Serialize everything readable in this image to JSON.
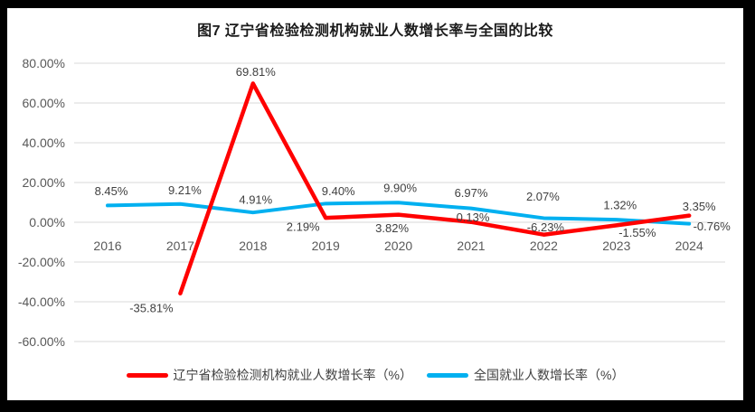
{
  "chart_data": {
    "type": "line",
    "title": "图7 辽宁省检验检测机构就业人数增长率与全国的比较",
    "xlabel": "",
    "ylabel": "",
    "categories": [
      "2016",
      "2017",
      "2018",
      "2019",
      "2020",
      "2021",
      "2022",
      "2023",
      "2024"
    ],
    "y_tick_labels": [
      "80.00%",
      "60.00%",
      "40.00%",
      "20.00%",
      "0.00%",
      "-20.00%",
      "-40.00%",
      "-60.00%"
    ],
    "ylim": [
      -60,
      80
    ],
    "grid": true,
    "legend_position": "bottom",
    "series": [
      {
        "name": "辽宁省检验检测机构就业人数增长率（%）",
        "color": "#FF0000",
        "values": [
          null,
          -35.81,
          69.81,
          2.19,
          3.82,
          0.13,
          -6.23,
          -1.55,
          3.35
        ],
        "labels": [
          null,
          "-35.81%",
          "69.81%",
          "2.19%",
          "3.82%",
          "0.13%",
          "-6.23%",
          "-1.55%",
          "3.35%"
        ]
      },
      {
        "name": "全国就业人数增长率（%）",
        "color": "#00B0F0",
        "values": [
          8.45,
          9.21,
          4.91,
          9.4,
          9.9,
          6.97,
          2.07,
          1.32,
          -0.76
        ],
        "labels": [
          "8.45%",
          "9.21%",
          "4.91%",
          "9.40%",
          "9.90%",
          "6.97%",
          "2.07%",
          "1.32%",
          "-0.76%"
        ]
      }
    ]
  }
}
